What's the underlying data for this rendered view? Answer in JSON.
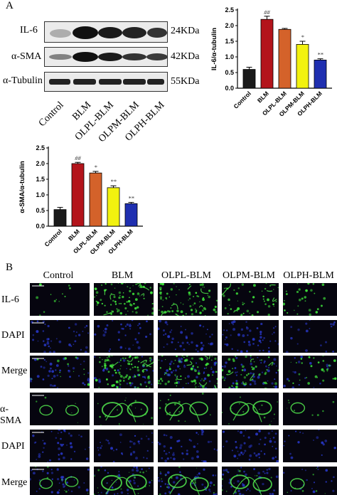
{
  "panel_a": {
    "letter": "A",
    "bands": [
      {
        "label": "IL-6",
        "kda": "24KDa"
      },
      {
        "label": "α-SMA",
        "kda": "42KDa"
      },
      {
        "label": "α-Tubulin",
        "kda": "55KDa"
      }
    ],
    "lanes": [
      "Control",
      "BLM",
      "OLPL-BLM",
      "OLPM-BLM",
      "OLPH-BLM"
    ]
  },
  "panel_b": {
    "letter": "B",
    "columns": [
      "Control",
      "BLM",
      "OLPL-BLM",
      "OLPM-BLM",
      "OLPH-BLM"
    ],
    "rows": [
      "IL-6",
      "DAPI",
      "Merge",
      "α-SMA",
      "DAPI",
      "Merge"
    ]
  },
  "chart_data": [
    {
      "type": "bar",
      "categories": [
        "Control",
        "BLM",
        "OLPL-BLM",
        "OLPM-BLM",
        "OLPH-BLM"
      ],
      "values": [
        0.6,
        2.2,
        1.88,
        1.4,
        0.9
      ],
      "errors": [
        0.07,
        0.1,
        0.03,
        0.1,
        0.04
      ],
      "significance": [
        "",
        "##",
        "",
        "*",
        "**"
      ],
      "ylabel": "IL-6/α-tubulin",
      "yticks": [
        "0.0",
        "0.5",
        "1.0",
        "1.5",
        "2.0",
        "2.5"
      ],
      "ylim": [
        0,
        2.5
      ],
      "colors": [
        "#1a1a1a",
        "#b3141b",
        "#d4622a",
        "#f2f20f",
        "#1f2fb0"
      ]
    },
    {
      "type": "bar",
      "categories": [
        "Control",
        "BLM",
        "OLPL-BLM",
        "OLPM-BLM",
        "OLPH-BLM"
      ],
      "values": [
        0.53,
        2.0,
        1.7,
        1.23,
        0.72
      ],
      "errors": [
        0.07,
        0.04,
        0.05,
        0.06,
        0.04
      ],
      "significance": [
        "",
        "##",
        "*",
        "**",
        "**"
      ],
      "ylabel": "α-SMA/α-tubulin",
      "yticks": [
        "0.0",
        "0.5",
        "1.0",
        "1.5",
        "2.0",
        "2.5"
      ],
      "ylim": [
        0,
        2.5
      ],
      "colors": [
        "#1a1a1a",
        "#b3141b",
        "#d4622a",
        "#f2f20f",
        "#1f2fb0"
      ]
    }
  ]
}
